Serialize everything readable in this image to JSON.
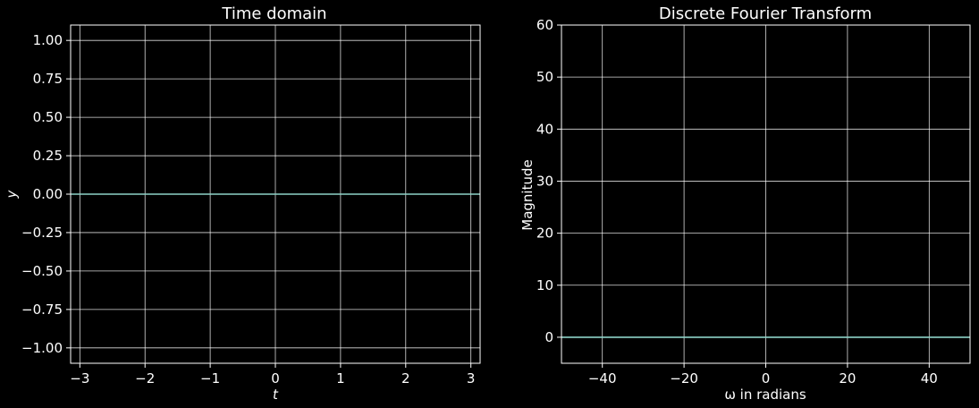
{
  "chart_data": [
    {
      "type": "line",
      "title": "Time domain",
      "xlabel": "t",
      "ylabel": "y",
      "xlim": [
        -3.1416,
        3.1416
      ],
      "ylim": [
        -1.1,
        1.1
      ],
      "xticks": [
        -3,
        -2,
        -1,
        0,
        1,
        2,
        3
      ],
      "xtick_labels": [
        "−3",
        "−2",
        "−1",
        "0",
        "1",
        "2",
        "3"
      ],
      "yticks": [
        -1.0,
        -0.75,
        -0.5,
        -0.25,
        0.0,
        0.25,
        0.5,
        0.75,
        1.0
      ],
      "ytick_labels": [
        "−1.00",
        "−0.75",
        "−0.50",
        "−0.25",
        "0.00",
        "0.25",
        "0.50",
        "0.75",
        "1.00"
      ],
      "grid": true,
      "series": [
        {
          "x": [
            -3.1416,
            3.1416
          ],
          "y": [
            0,
            0
          ],
          "color": "#8dd3c7"
        }
      ]
    },
    {
      "type": "line",
      "title": "Discrete Fourier Transform",
      "xlabel": "ω in radians",
      "ylabel": "Magnitude",
      "xlim": [
        -50,
        50
      ],
      "ylim": [
        -5,
        60
      ],
      "xticks": [
        -40,
        -20,
        0,
        20,
        40
      ],
      "xtick_labels": [
        "−40",
        "−20",
        "0",
        "20",
        "40"
      ],
      "yticks": [
        0,
        10,
        20,
        30,
        40,
        50,
        60
      ],
      "ytick_labels": [
        "0",
        "10",
        "20",
        "30",
        "40",
        "50",
        "60"
      ],
      "grid": true,
      "series": [
        {
          "x": [
            -50,
            50
          ],
          "y": [
            0,
            0
          ],
          "color": "#8dd3c7"
        }
      ]
    }
  ]
}
